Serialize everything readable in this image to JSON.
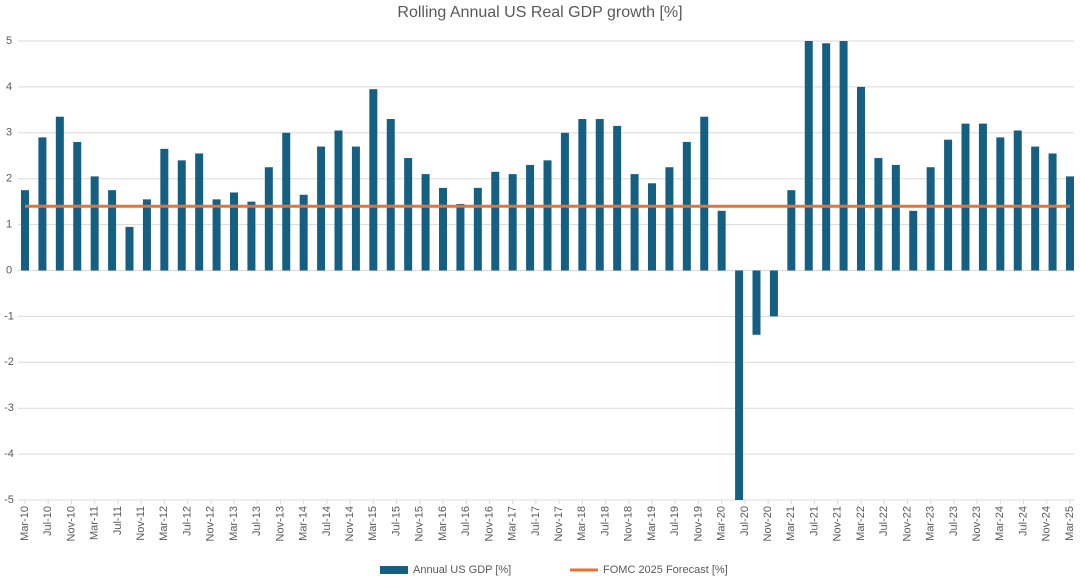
{
  "chart_data": {
    "type": "bar",
    "title": "Rolling Annual US Real GDP growth [%]",
    "x": [
      0,
      3,
      6,
      9,
      12,
      15,
      18,
      21,
      24,
      27,
      30,
      33,
      36,
      39,
      42,
      45,
      48,
      51,
      54,
      57,
      60,
      63,
      66,
      69,
      72,
      75,
      78,
      81,
      84,
      87,
      90,
      93,
      96,
      99,
      102,
      105,
      108,
      111,
      114,
      117,
      120,
      123,
      126,
      129,
      132,
      135,
      138,
      141,
      144,
      147,
      150,
      153,
      156,
      159,
      162,
      165,
      168,
      171,
      174,
      177,
      180
    ],
    "series": [
      {
        "name": "Annual US GDP [%]",
        "type": "bar",
        "color": "#156082",
        "values": [
          1.75,
          2.9,
          3.35,
          2.8,
          2.05,
          1.75,
          0.95,
          1.55,
          2.65,
          2.4,
          2.55,
          1.55,
          1.7,
          1.5,
          2.25,
          3.0,
          1.65,
          2.7,
          3.05,
          2.7,
          3.95,
          3.3,
          2.45,
          2.1,
          1.8,
          1.45,
          1.8,
          2.15,
          2.1,
          2.3,
          2.4,
          3.0,
          3.3,
          3.3,
          3.15,
          2.1,
          1.9,
          2.25,
          2.8,
          3.35,
          1.3,
          -5,
          -1.4,
          -1.0,
          1.75,
          5,
          4.95,
          5,
          4.0,
          2.45,
          2.3,
          1.3,
          2.25,
          2.85,
          3.2,
          3.2,
          2.9,
          3.05,
          2.7,
          2.55,
          2.05
        ]
      },
      {
        "name": "FOMC 2025 Forecast [%]",
        "type": "line",
        "color": "#e97132",
        "values": [
          1.4,
          1.4,
          1.4,
          1.4,
          1.4,
          1.4,
          1.4,
          1.4,
          1.4,
          1.4,
          1.4,
          1.4,
          1.4,
          1.4,
          1.4,
          1.4,
          1.4,
          1.4,
          1.4,
          1.4,
          1.4,
          1.4,
          1.4,
          1.4,
          1.4,
          1.4,
          1.4,
          1.4,
          1.4,
          1.4,
          1.4,
          1.4,
          1.4,
          1.4,
          1.4,
          1.4,
          1.4,
          1.4,
          1.4,
          1.4,
          1.4,
          1.4,
          1.4,
          1.4,
          1.4,
          1.4,
          1.4,
          1.4,
          1.4,
          1.4,
          1.4,
          1.4,
          1.4,
          1.4,
          1.4,
          1.4,
          1.4,
          1.4,
          1.4,
          1.4,
          1.4
        ]
      }
    ],
    "xlim": [
      0,
      180
    ],
    "xticks": [
      {
        "value": 0,
        "label": "Mar-10"
      },
      {
        "value": 4,
        "label": "Jul-10"
      },
      {
        "value": 8,
        "label": "Nov-10"
      },
      {
        "value": 12,
        "label": "Mar-11"
      },
      {
        "value": 16,
        "label": "Jul-11"
      },
      {
        "value": 20,
        "label": "Nov-11"
      },
      {
        "value": 24,
        "label": "Mar-12"
      },
      {
        "value": 28,
        "label": "Jul-12"
      },
      {
        "value": 32,
        "label": "Nov-12"
      },
      {
        "value": 36,
        "label": "Mar-13"
      },
      {
        "value": 40,
        "label": "Jul-13"
      },
      {
        "value": 44,
        "label": "Nov-13"
      },
      {
        "value": 48,
        "label": "Mar-14"
      },
      {
        "value": 52,
        "label": "Jul-14"
      },
      {
        "value": 56,
        "label": "Nov-14"
      },
      {
        "value": 60,
        "label": "Mar-15"
      },
      {
        "value": 64,
        "label": "Jul-15"
      },
      {
        "value": 68,
        "label": "Nov-15"
      },
      {
        "value": 72,
        "label": "Mar-16"
      },
      {
        "value": 76,
        "label": "Jul-16"
      },
      {
        "value": 80,
        "label": "Nov-16"
      },
      {
        "value": 84,
        "label": "Mar-17"
      },
      {
        "value": 88,
        "label": "Jul-17"
      },
      {
        "value": 92,
        "label": "Nov-17"
      },
      {
        "value": 96,
        "label": "Mar-18"
      },
      {
        "value": 100,
        "label": "Jul-18"
      },
      {
        "value": 104,
        "label": "Nov-18"
      },
      {
        "value": 108,
        "label": "Mar-19"
      },
      {
        "value": 112,
        "label": "Jul-19"
      },
      {
        "value": 116,
        "label": "Nov-19"
      },
      {
        "value": 120,
        "label": "Mar-20"
      },
      {
        "value": 124,
        "label": "Jul-20"
      },
      {
        "value": 128,
        "label": "Nov-20"
      },
      {
        "value": 132,
        "label": "Mar-21"
      },
      {
        "value": 136,
        "label": "Jul-21"
      },
      {
        "value": 140,
        "label": "Nov-21"
      },
      {
        "value": 144,
        "label": "Mar-22"
      },
      {
        "value": 148,
        "label": "Jul-22"
      },
      {
        "value": 152,
        "label": "Nov-22"
      },
      {
        "value": 156,
        "label": "Mar-23"
      },
      {
        "value": 160,
        "label": "Jul-23"
      },
      {
        "value": 164,
        "label": "Nov-23"
      },
      {
        "value": 168,
        "label": "Mar-24"
      },
      {
        "value": 172,
        "label": "Jul-24"
      },
      {
        "value": 176,
        "label": "Nov-24"
      },
      {
        "value": 180,
        "label": "Mar-25"
      }
    ],
    "ylim": [
      -5,
      5
    ],
    "yticks": [
      -5,
      -4,
      -3,
      -2,
      -1,
      0,
      1,
      2,
      3,
      4,
      5
    ],
    "grid": true,
    "legend": "bottom"
  }
}
